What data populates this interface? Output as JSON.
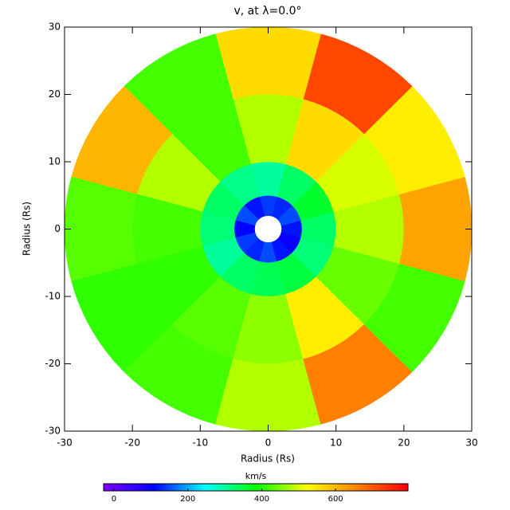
{
  "chart_data": {
    "type": "polar-map",
    "title": "v, at λ=0.0°",
    "x_label": "Radius (Rs)",
    "y_label": "Radius (Rs)",
    "xlim": [
      -30,
      30
    ],
    "ylim": [
      -30,
      30
    ],
    "xticks": [
      -30,
      -20,
      -10,
      0,
      10,
      20,
      30
    ],
    "yticks": [
      -30,
      -20,
      -10,
      0,
      10,
      20,
      30
    ],
    "theta": [
      0,
      30,
      60,
      90,
      120,
      150,
      180,
      210,
      240,
      270,
      300,
      330
    ],
    "radii": [
      2,
      5,
      10,
      20,
      30
    ],
    "values": [
      [
        120,
        150,
        130,
        140,
        120,
        150,
        110,
        140,
        130,
        150,
        120,
        100
      ],
      [
        330,
        360,
        330,
        300,
        310,
        330,
        320,
        300,
        330,
        340,
        350,
        320
      ],
      [
        480,
        500,
        560,
        480,
        420,
        480,
        420,
        410,
        430,
        460,
        540,
        440
      ],
      [
        620,
        540,
        720,
        560,
        420,
        600,
        430,
        410,
        420,
        480,
        660,
        420
      ]
    ],
    "colorbar": {
      "label": "km/s",
      "clim": [
        -28,
        796
      ],
      "ticks": [
        0,
        200,
        400,
        600
      ],
      "colorscale": [
        "#8000ff",
        "#0000ff",
        "#00ffff",
        "#00ff00",
        "#ffff00",
        "#ff8000",
        "#ff0000"
      ]
    }
  }
}
